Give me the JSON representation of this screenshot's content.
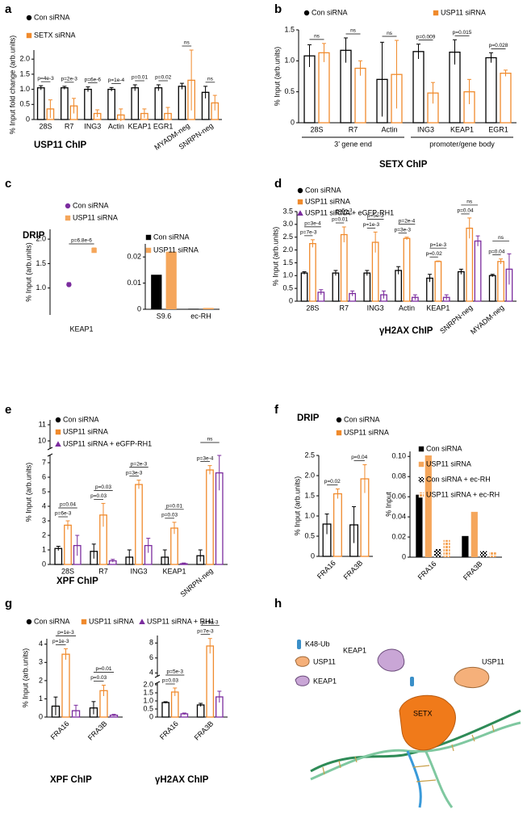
{
  "panel_labels": [
    "a",
    "b",
    "c",
    "d",
    "e",
    "f",
    "g",
    "h"
  ],
  "chart_data": [
    {
      "type": "bar",
      "title": "USP11 ChIP",
      "ylabel": "% Input fold change (arb.units)",
      "categories": [
        "28S",
        "R7",
        "ING3",
        "Actin",
        "KEAP1",
        "EGR1",
        "MYADM-neg",
        "SNRPN-neg"
      ],
      "series": [
        {
          "name": "Con siRNA",
          "color": "#000000",
          "marker": "circle",
          "values": [
            1.05,
            1.05,
            1.0,
            1.0,
            1.05,
            1.05,
            1.1,
            0.9
          ],
          "errors": [
            0.07,
            0.05,
            0.08,
            0.06,
            0.1,
            0.1,
            0.1,
            0.2
          ]
        },
        {
          "name": "SETX siRNA",
          "color": "#f08a2c",
          "marker": "square",
          "values": [
            0.35,
            0.45,
            0.2,
            0.15,
            0.2,
            0.2,
            1.3,
            0.55
          ],
          "errors": [
            0.3,
            0.25,
            0.12,
            0.2,
            0.15,
            0.2,
            1.0,
            0.25
          ],
          "p_values": [
            "p=4e-3",
            "p=2e-3",
            "p=6e-6",
            "p=1e-4",
            "p=0.01",
            "p=0.02",
            "ns",
            "ns"
          ]
        }
      ],
      "ylim": [
        0,
        2.3
      ],
      "yticks": [
        0,
        0.5,
        {
          "value": 1,
          "label": "1.0"
        },
        1.5,
        {
          "value": 2,
          "label": "2.0"
        }
      ],
      "xtick_rotation": 35
    },
    {
      "type": "bar",
      "title": "SETX ChIP",
      "ylabel": "% Input (arb.units)",
      "categories": [
        "28S",
        "R7",
        "Actin",
        "ING3",
        "KEAP1",
        "EGR1"
      ],
      "category_groups": [
        {
          "label": "3’ gene end",
          "from": "28S",
          "to": "Actin"
        },
        {
          "label": "promoter/gene body",
          "from": "ING3",
          "to": "EGR1"
        }
      ],
      "series": [
        {
          "name": "Con siRNA",
          "color": "#000000",
          "marker": "circle",
          "values": [
            1.08,
            1.17,
            0.7,
            1.15,
            1.14,
            1.05
          ],
          "errors": [
            0.18,
            0.2,
            0.6,
            0.12,
            0.2,
            0.08
          ]
        },
        {
          "name": "USP11 siRNA",
          "color": "#f08a2c",
          "marker": "square",
          "values": [
            1.13,
            0.88,
            0.78,
            0.48,
            0.5,
            0.8
          ],
          "errors": [
            0.15,
            0.12,
            0.55,
            0.17,
            0.2,
            0.05
          ],
          "p_values": [
            "ns",
            "ns",
            "ns",
            "p=0.009",
            "p=0.015",
            "p=0.028"
          ]
        }
      ],
      "ylim": [
        0,
        1.5
      ],
      "yticks": [
        0,
        0.5,
        {
          "value": 1,
          "label": "1.0"
        },
        1.5
      ]
    },
    {
      "type": "dot",
      "title": "DRIP",
      "ylabel": "% Input (arb.units)",
      "categories": [
        "KEAP1"
      ],
      "series": [
        {
          "name": "Con siRNA",
          "color": "#7b2c9e",
          "marker": "circle",
          "values": [
            1.07
          ],
          "errors": [
            0.04
          ]
        },
        {
          "name": "USP11 siRNA",
          "color": "#f5a65b",
          "marker": "square",
          "values": [
            1.77
          ],
          "errors": [
            0.05
          ],
          "p_values": [
            "p=6.8e-6"
          ]
        }
      ],
      "ylim": [
        0.45,
        2.2
      ],
      "yticks": [
        {
          "value": 1,
          "label": "1.0"
        },
        1.5,
        {
          "value": 2,
          "label": "2.0"
        }
      ]
    },
    {
      "type": "bar",
      "fill_style": "solid",
      "categories": [
        "S9.6",
        "ec-RH"
      ],
      "series": [
        {
          "name": "Con siRNA",
          "color": "#000000",
          "marker": "square",
          "values": [
            0.0132,
            0.0002
          ]
        },
        {
          "name": "USP11 siRNA",
          "color": "#f5a65b",
          "marker": "square",
          "values": [
            0.022,
            0.0005
          ]
        }
      ],
      "ylim": [
        0,
        0.025
      ],
      "yticks": [
        0,
        0.01,
        0.02
      ]
    },
    {
      "type": "bar",
      "title": "γH2AX ChIP",
      "ylabel": "% Input (arb.units)",
      "categories": [
        "28S",
        "R7",
        "ING3",
        "Actin",
        "KEAP1",
        "SNRPN-neg",
        "MYADM-neg"
      ],
      "series": [
        {
          "name": "Con siRNA",
          "color": "#000000",
          "marker": "circle",
          "values": [
            1.1,
            1.1,
            1.1,
            1.2,
            0.9,
            1.15,
            1.0
          ],
          "errors": [
            0.05,
            0.1,
            0.1,
            0.15,
            0.15,
            0.1,
            0.05
          ]
        },
        {
          "name": "USP11 siRNA",
          "color": "#f08a2c",
          "marker": "square",
          "values": [
            2.25,
            2.6,
            2.3,
            2.45,
            1.55,
            2.85,
            1.55
          ],
          "errors": [
            0.15,
            0.3,
            0.4,
            0.05,
            0.02,
            0.4,
            0.1
          ],
          "p_values": [
            "p=7e-3",
            "p=0.01",
            "p=1e-3",
            "p=3e-3",
            "p=0.02",
            "p=0.04",
            "p=0.04"
          ]
        },
        {
          "name": "USP11 siRNA + eGFP-RH1",
          "color": "#7b2c9e",
          "marker": "triangle",
          "values": [
            0.35,
            0.3,
            0.25,
            0.15,
            0.15,
            2.35,
            1.25
          ],
          "errors": [
            0.1,
            0.1,
            0.15,
            0.1,
            0.1,
            0.2,
            0.6
          ],
          "p_values": [
            "p=3e-4",
            "p=6e-3",
            "p=5e-3",
            "p=2e-4",
            "p=1e-3",
            "ns",
            "ns"
          ]
        }
      ],
      "ylim": [
        0,
        3.5
      ],
      "yticks": [
        0,
        0.5,
        {
          "value": 1,
          "label": "1.0"
        },
        1.5,
        {
          "value": 2,
          "label": "2.0"
        },
        2.5,
        {
          "value": 3,
          "label": "3.0"
        },
        3.5
      ],
      "xtick_rotation": 40
    },
    {
      "type": "bar",
      "title": "XPF ChIP",
      "ylabel": "% Input (arb.units)",
      "categories": [
        "28S",
        "R7",
        "ING3",
        "KEAP1",
        "SNRPN-neg"
      ],
      "series": [
        {
          "name": "Con siRNA",
          "color": "#000000",
          "marker": "circle",
          "values": [
            1.1,
            0.9,
            0.5,
            0.5,
            0.6
          ],
          "errors": [
            0.15,
            0.5,
            0.5,
            0.5,
            0.4
          ]
        },
        {
          "name": "USP11 siRNA",
          "color": "#f08a2c",
          "marker": "square",
          "values": [
            2.7,
            3.4,
            5.5,
            2.5,
            6.5
          ],
          "errors": [
            0.3,
            0.8,
            0.3,
            0.4,
            0.3
          ],
          "p_values": [
            "p=6e-3",
            "p=0.03",
            "p=3e-3",
            "p=0.03",
            "p=3e-4"
          ]
        },
        {
          "name": "USP11 siRNA + eGFP-RH1",
          "color": "#7b2c9e",
          "marker": "triangle",
          "values": [
            1.3,
            0.25,
            1.3,
            0.05,
            6.3
          ],
          "errors": [
            0.7,
            0.1,
            0.5,
            0.05,
            1.2
          ],
          "p_values": [
            "p=0.04",
            "p=0.03",
            "p=2e-3",
            "p=0.01",
            "ns"
          ]
        }
      ],
      "ylim": [
        0,
        11.3
      ],
      "ybreak": [
        7.5,
        9.5
      ],
      "yticks": [
        0,
        1,
        2,
        3,
        4,
        5,
        6,
        7,
        10,
        11
      ],
      "xtick_rotation": 40
    },
    {
      "type": "bar",
      "title": "DRIP",
      "ylabel": "% Input (arb.units)",
      "categories": [
        "FRA16",
        "FRA3B"
      ],
      "series": [
        {
          "name": "Con siRNA",
          "color": "#000000",
          "marker": "circle",
          "values": [
            0.8,
            0.78
          ],
          "errors": [
            0.25,
            0.45
          ]
        },
        {
          "name": "USP11 siRNA",
          "color": "#f08a2c",
          "marker": "square",
          "values": [
            1.55,
            1.92
          ],
          "errors": [
            0.12,
            0.35
          ],
          "p_values": [
            "p=0.02",
            "p=0.04"
          ]
        }
      ],
      "ylim": [
        0,
        2.5
      ],
      "yticks": [
        0,
        0.5,
        {
          "value": 1,
          "label": "1.0"
        },
        1.5,
        {
          "value": 2,
          "label": "2.0"
        },
        2.5
      ],
      "xtick_rotation": 45
    },
    {
      "type": "bar",
      "fill_style": "solid",
      "ylabel": "% Input",
      "categories": [
        "FRA16",
        "FRA3B"
      ],
      "series": [
        {
          "name": "Con siRNA",
          "color": "#000000",
          "marker": "square",
          "values": [
            0.062,
            0.021
          ]
        },
        {
          "name": "USP11 siRNA",
          "color": "#f5a65b",
          "marker": "square",
          "values": [
            0.101,
            0.045
          ]
        },
        {
          "name": "Con siRNA + ec-RH",
          "color": "#000000",
          "marker": "square",
          "pattern": "checker",
          "values": [
            0.008,
            0.006
          ]
        },
        {
          "name": "USP11 siRNA + ec-RH",
          "color": "#f5a65b",
          "marker": "square",
          "pattern": "grid",
          "values": [
            0.017,
            0.005
          ]
        }
      ],
      "ylim": [
        0,
        0.105
      ],
      "yticks": [
        0,
        0.02,
        0.04,
        0.06,
        0.08,
        {
          "value": 0.1,
          "label": "0.10"
        }
      ],
      "xtick_rotation": 45
    },
    {
      "type": "bar",
      "title": "XPF ChIP",
      "ylabel": "% Input (arb.units)",
      "categories": [
        "FRA16",
        "FRA3B"
      ],
      "series": [
        {
          "name": "Con siRNA",
          "color": "#000000",
          "marker": "circle",
          "values": [
            0.6,
            0.5
          ],
          "errors": [
            0.5,
            0.35
          ]
        },
        {
          "name": "USP11 siRNA",
          "color": "#f08a2c",
          "marker": "square",
          "values": [
            3.45,
            1.45
          ],
          "errors": [
            0.3,
            0.3
          ],
          "p_values": [
            "p=1e-3",
            "p=0.03"
          ]
        },
        {
          "name": "USP11 siRNA + RH1",
          "color": "#7b2c9e",
          "marker": "triangle",
          "values": [
            0.35,
            0.1
          ],
          "errors": [
            0.3,
            0.05
          ],
          "p_values": [
            "p=1e-3",
            "p=0.01"
          ]
        }
      ],
      "ylim": [
        0,
        4.3
      ],
      "yticks": [
        0,
        1,
        2,
        3,
        4
      ],
      "xtick_rotation": 45
    },
    {
      "type": "bar",
      "title": "γH2AX ChIP",
      "categories": [
        "FRA16",
        "FRA3B"
      ],
      "series": [
        {
          "color": "#000000",
          "values": [
            0.9,
            0.75
          ],
          "errors": [
            0.05,
            0.1
          ]
        },
        {
          "color": "#f08a2c",
          "values": [
            1.55,
            7.6
          ],
          "errors": [
            0.25,
            1.0
          ],
          "p_values": [
            "p=0.03",
            "p=7e-3"
          ]
        },
        {
          "color": "#7b2c9e",
          "values": [
            0.2,
            1.25
          ],
          "errors": [
            0.05,
            0.35
          ],
          "p_values": [
            "p=5e-3",
            "p=9e-3"
          ]
        }
      ],
      "ylim": [
        0,
        9
      ],
      "ybreak": [
        2.1,
        3.5
      ],
      "yticks": [
        0,
        0.5,
        {
          "value": 1,
          "label": "1.0"
        },
        1.5,
        {
          "value": 2,
          "label": "2.0"
        },
        4,
        6,
        8
      ],
      "xtick_rotation": 45
    }
  ],
  "diagram": {
    "legend": [
      "K48-Ub",
      "USP11",
      "KEAP1"
    ],
    "labels": [
      "KEAP1",
      "USP11",
      "SETX"
    ]
  }
}
